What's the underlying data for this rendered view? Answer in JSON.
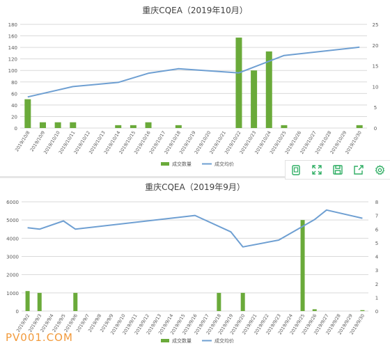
{
  "chart_data": [
    {
      "type": "bar+line",
      "title": "重庆CQEA（2019年10月）",
      "categories": [
        "2019/10/8",
        "2019/10/9",
        "2019/10/10",
        "2019/10/11",
        "2019/10/12",
        "2019/10/13",
        "2019/10/14",
        "2019/10/15",
        "2019/10/16",
        "2019/10/17",
        "2019/10/18",
        "2019/10/19",
        "2019/10/20",
        "2019/10/21",
        "2019/10/22",
        "2019/10/23",
        "2019/10/24",
        "2019/10/25",
        "2019/10/26",
        "2019/10/27",
        "2019/10/28",
        "2019/10/29",
        "2019/10/30"
      ],
      "series": [
        {
          "name": "成交数量",
          "type": "bar",
          "axis": "left",
          "color": "#6aaa3a",
          "values": [
            50,
            10,
            10,
            10,
            0,
            0,
            5,
            5,
            10,
            0,
            5,
            0,
            0,
            0,
            157,
            100,
            133,
            5,
            0,
            0,
            0,
            0,
            5
          ]
        },
        {
          "name": "成交均价",
          "type": "line",
          "axis": "right",
          "color": "#6e9fd2",
          "points": [
            [
              0,
              7.5
            ],
            [
              3,
              10
            ],
            [
              6,
              11
            ],
            [
              8,
              13.2
            ],
            [
              10,
              14.3
            ],
            [
              14,
              13.3
            ],
            [
              17,
              17.5
            ],
            [
              22,
              19.5
            ]
          ]
        }
      ],
      "ylim_left": [
        0,
        180
      ],
      "yticks_left": [
        0,
        20,
        40,
        60,
        80,
        100,
        120,
        140,
        160,
        180
      ],
      "ylim_right": [
        0,
        25
      ],
      "yticks_right": [
        0,
        5,
        10,
        15,
        20,
        25
      ],
      "legend": "bottom"
    },
    {
      "type": "bar+line",
      "title": "重庆CQEA（2019年9月）",
      "categories": [
        "2019/9/2",
        "2019/9/3",
        "2019/9/4",
        "2019/9/5",
        "2019/9/6",
        "2019/9/7",
        "2019/9/8",
        "2019/9/9",
        "2019/9/10",
        "2019/9/11",
        "2019/9/12",
        "2019/9/13",
        "2019/9/14",
        "2019/9/15",
        "2019/9/16",
        "2019/9/17",
        "2019/9/18",
        "2019/9/19",
        "2019/9/20",
        "2019/9/21",
        "2019/9/22",
        "2019/9/23",
        "2019/9/24",
        "2019/9/25",
        "2019/9/26",
        "2019/9/27",
        "2019/9/28",
        "2019/9/29",
        "2019/9/30"
      ],
      "series": [
        {
          "name": "成交数量",
          "type": "bar",
          "axis": "left",
          "color": "#6aaa3a",
          "values": [
            1100,
            1000,
            0,
            0,
            1000,
            0,
            0,
            0,
            0,
            0,
            0,
            0,
            0,
            0,
            0,
            0,
            1000,
            0,
            1000,
            0,
            0,
            0,
            0,
            5000,
            100,
            0,
            0,
            0,
            50
          ]
        },
        {
          "name": "成交均价",
          "type": "line",
          "axis": "right",
          "color": "#6e9fd2",
          "points": [
            [
              0,
              6.1
            ],
            [
              1,
              6.0
            ],
            [
              3,
              6.6
            ],
            [
              4,
              6.0
            ],
            [
              14,
              7.0
            ],
            [
              17,
              5.8
            ],
            [
              18,
              4.7
            ],
            [
              21,
              5.2
            ],
            [
              24,
              6.7
            ],
            [
              25,
              7.4
            ],
            [
              28,
              6.8
            ]
          ]
        }
      ],
      "ylim_left": [
        0,
        6000
      ],
      "yticks_left": [
        0,
        1000,
        2000,
        3000,
        4000,
        5000,
        6000
      ],
      "ylim_right": [
        0,
        8
      ],
      "yticks_right": [
        0,
        1,
        2,
        3,
        4,
        5,
        6,
        7,
        8
      ],
      "legend": "bottom"
    }
  ],
  "toolbar": {
    "icons": [
      "copy-icon",
      "fullscreen-icon",
      "save-icon",
      "share-icon",
      "settings-icon"
    ],
    "color": "#2fae63"
  },
  "watermark": "PV001.COM"
}
